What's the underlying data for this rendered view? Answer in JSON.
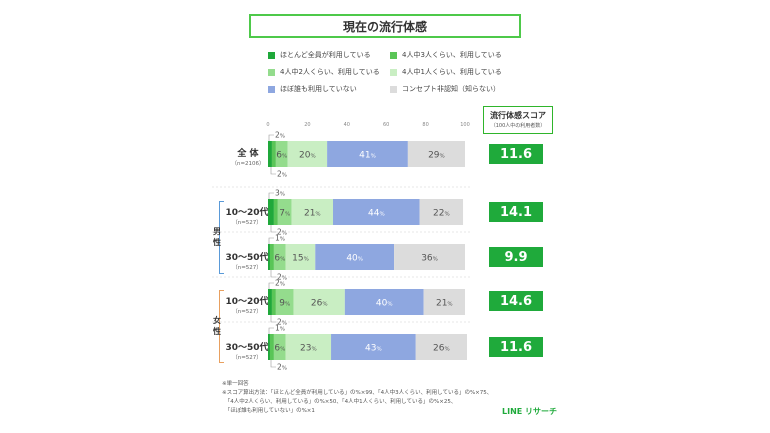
{
  "title": "現在の流行体感",
  "legend": [
    {
      "label": "ほとんど全員が利用している",
      "color": "#1fa83a"
    },
    {
      "label": "4人中3人くらい、利用している",
      "color": "#5ac557"
    },
    {
      "label": "4人中2人くらい、利用している",
      "color": "#94dc8d"
    },
    {
      "label": "4人中1人くらい、利用している",
      "color": "#c9eec3"
    },
    {
      "label": "ほぼ誰も利用していない",
      "color": "#8ea7e0"
    },
    {
      "label": "コンセプト非認知（知らない）",
      "color": "#dcdcdc"
    }
  ],
  "score_header": {
    "title": "流行体感スコア",
    "subtitle": "（100人中の利用者数）"
  },
  "groups": {
    "male": "男\n性",
    "female": "女\n性"
  },
  "rows": [
    {
      "label": "全 体",
      "n": "（n=2106）",
      "score": "11.6"
    },
    {
      "label": "10～20代",
      "n": "（n=527）",
      "score": "14.1"
    },
    {
      "label": "30～50代",
      "n": "（n=527）",
      "score": "9.9"
    },
    {
      "label": "10～20代",
      "n": "（n=527）",
      "score": "14.6"
    },
    {
      "label": "30～50代",
      "n": "（n=527）",
      "score": "11.6"
    }
  ],
  "chart_data": {
    "type": "bar",
    "orientation": "horizontal-stacked-100",
    "categories": [
      "全体",
      "男性 10～20代",
      "男性 30～50代",
      "女性 10～20代",
      "女性 30～50代"
    ],
    "xlim": [
      0,
      100
    ],
    "ticks": [
      "0",
      "20",
      "40",
      "60",
      "80",
      "100"
    ],
    "unit": "%",
    "series": [
      {
        "name": "ほとんど全員が利用している",
        "values": [
          2,
          3,
          1,
          2,
          1
        ]
      },
      {
        "name": "4人中3人くらい、利用している",
        "values": [
          2,
          2,
          2,
          2,
          2
        ]
      },
      {
        "name": "4人中2人くらい、利用している",
        "values": [
          6,
          7,
          6,
          9,
          6
        ]
      },
      {
        "name": "4人中1人くらい、利用している",
        "values": [
          20,
          21,
          15,
          26,
          23
        ]
      },
      {
        "name": "ほぼ誰も利用していない",
        "values": [
          41,
          44,
          40,
          40,
          43
        ]
      },
      {
        "name": "コンセプト非認知（知らない）",
        "values": [
          29,
          22,
          36,
          21,
          26
        ]
      }
    ],
    "scores": [
      11.6,
      14.1,
      9.9,
      14.6,
      11.6
    ]
  },
  "notes": [
    "※単一回答",
    "※スコア算出方法：「ほとんど全員が利用している」の%×99、「4人中3人くらい、利用している」の%×75、",
    "　「4人中2人くらい、利用している」の%×50、「4人中1人くらい、利用している」の%×25、",
    "　「ほぼ誰も利用していない」の%×1"
  ],
  "brand": "LINE リサーチ"
}
